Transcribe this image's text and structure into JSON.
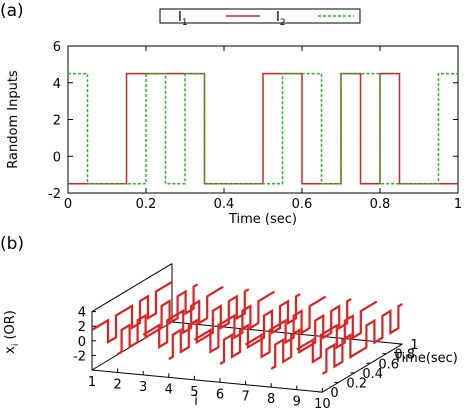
{
  "panels": {
    "a": "(a)",
    "b": "(b)"
  },
  "chart_data": [
    {
      "type": "line",
      "panel_label": "(a)",
      "xlabel": "Time (sec)",
      "ylabel": "Random Inputs",
      "xlim": [
        0,
        1
      ],
      "ylim": [
        -2,
        6
      ],
      "xticks": [
        "0",
        "0.2",
        "0.4",
        "0.6",
        "0.8",
        "1"
      ],
      "yticks": [
        "-2",
        "0",
        "2",
        "4",
        "6"
      ],
      "legend_position": "top-center",
      "series": [
        {
          "name": "I",
          "subscript": "1",
          "color": "#dd2222",
          "style": "solid",
          "x": [
            0,
            0.15,
            0.15,
            0.35,
            0.35,
            0.5,
            0.5,
            0.6,
            0.6,
            0.7,
            0.7,
            0.75,
            0.75,
            0.8,
            0.8,
            0.85,
            0.85,
            1.0
          ],
          "y": [
            -1.5,
            -1.5,
            4.5,
            4.5,
            -1.5,
            -1.5,
            4.5,
            4.5,
            -1.5,
            -1.5,
            4.5,
            4.5,
            -1.5,
            -1.5,
            4.5,
            4.5,
            -1.5,
            -1.5
          ]
        },
        {
          "name": "I",
          "subscript": "2",
          "color": "#22bb22",
          "style": "dashed",
          "x": [
            0,
            0.05,
            0.05,
            0.2,
            0.2,
            0.25,
            0.25,
            0.3,
            0.3,
            0.35,
            0.35,
            0.55,
            0.55,
            0.65,
            0.65,
            0.7,
            0.7,
            0.8,
            0.8,
            0.95,
            0.95,
            1.0
          ],
          "y": [
            4.5,
            4.5,
            -1.5,
            -1.5,
            4.5,
            4.5,
            -1.5,
            -1.5,
            4.5,
            4.5,
            -1.5,
            -1.5,
            4.5,
            4.5,
            -1.5,
            -1.5,
            4.5,
            4.5,
            -1.5,
            -1.5,
            4.5,
            4.5
          ]
        }
      ]
    },
    {
      "type": "line",
      "subtype": "3d-waterfall",
      "panel_label": "(b)",
      "xlabel": "i",
      "ylabel": "Time(sec)",
      "zlabel": "x",
      "zlabel_sub": "i",
      "zlabel_suffix": " (OR)",
      "xlim": [
        1,
        10
      ],
      "ylim": [
        0,
        1
      ],
      "zlim": [
        -4,
        4
      ],
      "xticks": [
        "1",
        "2",
        "3",
        "4",
        "5",
        "6",
        "7",
        "8",
        "9",
        "10"
      ],
      "yticks": [
        "0",
        "0.2",
        "0.4",
        "0.6",
        "0.8",
        "1"
      ],
      "zticks": [
        "-2",
        "0",
        "2",
        "4"
      ],
      "color": "#dd2222",
      "switch_times": [
        0.05,
        0.15,
        0.2,
        0.25,
        0.3,
        0.35,
        0.5,
        0.55,
        0.6,
        0.65,
        0.7,
        0.75,
        0.8,
        0.85,
        0.95
      ],
      "levels": [
        -1.5,
        1.5
      ],
      "initial_states": [
        1,
        0,
        1,
        0,
        1,
        0,
        1,
        0,
        1,
        0
      ]
    }
  ]
}
